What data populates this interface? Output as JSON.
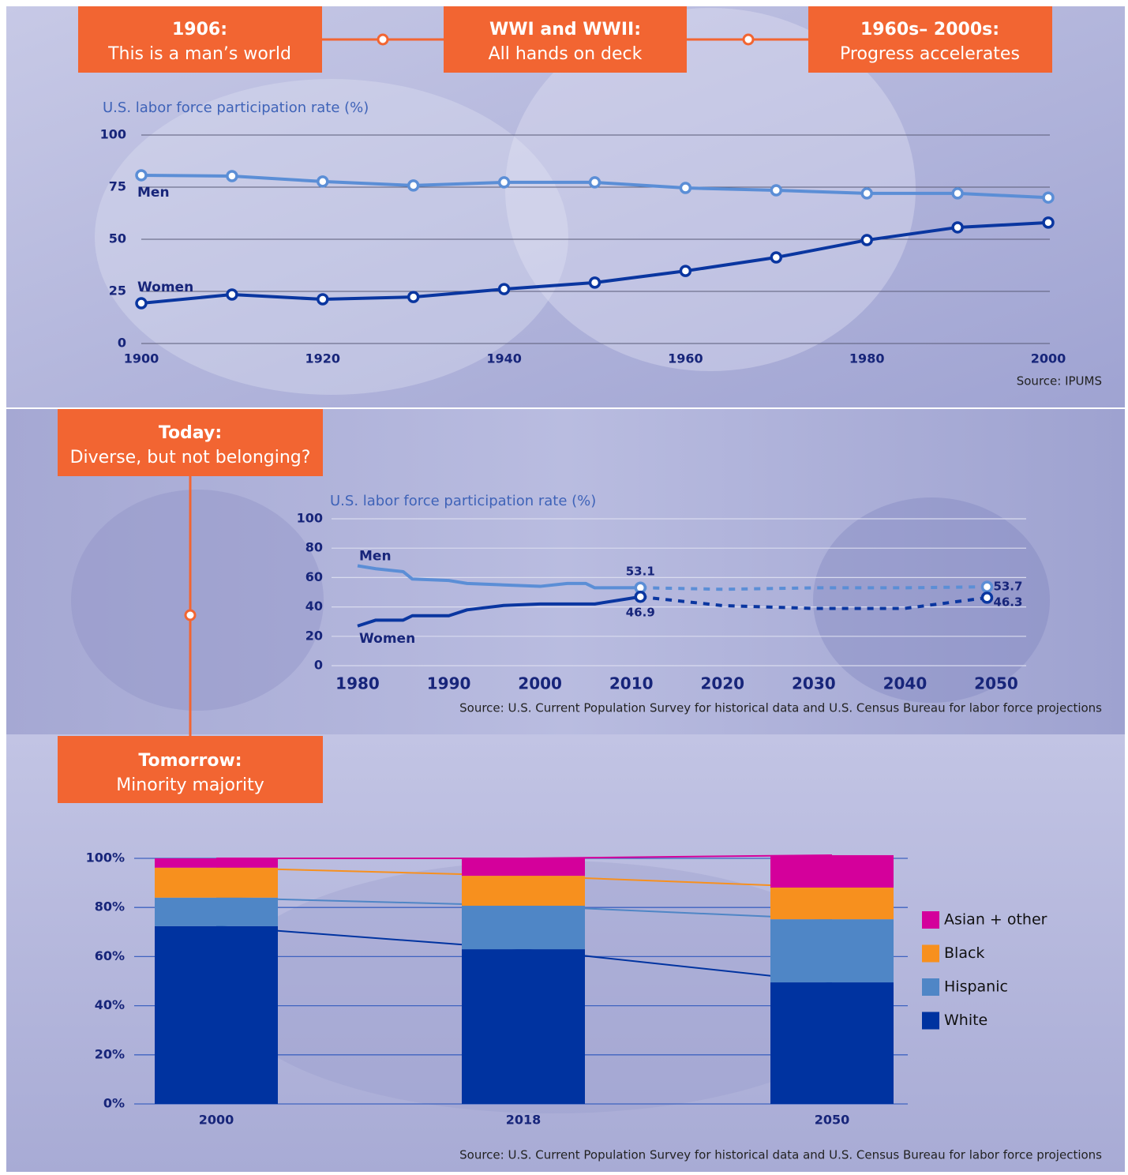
{
  "timeline": [
    {
      "title": "1906:",
      "subtitle": "This is a man’s world"
    },
    {
      "title": "WWI and WWII:",
      "subtitle": "All hands on deck"
    },
    {
      "title": "1960s– 2000s:",
      "subtitle": "Progress accelerates"
    },
    {
      "title": "Today:",
      "subtitle": "Diverse, but not belonging?"
    },
    {
      "title": "Tomorrow:",
      "subtitle": "Minority majority"
    }
  ],
  "chart_data": [
    {
      "type": "line",
      "title": "U.S. labor force participation rate (%)",
      "x": [
        1900,
        1910,
        1920,
        1930,
        1940,
        1950,
        1960,
        1970,
        1980,
        1990,
        2000
      ],
      "xlim": [
        1900,
        2000
      ],
      "xticks": [
        1900,
        1920,
        1940,
        1960,
        1980,
        2000
      ],
      "ylim": [
        0,
        100
      ],
      "yticks": [
        0,
        25,
        50,
        75,
        100
      ],
      "grid": true,
      "markers": true,
      "series": [
        {
          "name": "Men",
          "color": "#5b8ed6",
          "values": [
            80.7,
            80.3,
            77.7,
            75.8,
            77.3,
            77.3,
            74.6,
            73.5,
            72,
            72,
            70
          ]
        },
        {
          "name": "Women",
          "color": "#0a36a0",
          "values": [
            19.3,
            23.5,
            21.2,
            22.3,
            26.1,
            29.2,
            34.8,
            41.3,
            49.6,
            55.7,
            58
          ]
        }
      ],
      "source": "Source: IPUMS"
    },
    {
      "type": "line",
      "title": "U.S. labor force participation rate (%)",
      "x": [
        1980,
        1982,
        1985,
        1986,
        1990,
        1992,
        1996,
        2000,
        2003,
        2005,
        2006,
        2011,
        2020,
        2030,
        2040,
        2049
      ],
      "xlim": [
        1980,
        2050
      ],
      "xticks": [
        1980,
        1990,
        2000,
        2010,
        2020,
        2030,
        2040,
        2050
      ],
      "ylim": [
        0,
        100
      ],
      "yticks": [
        0,
        20,
        40,
        60,
        80,
        100
      ],
      "grid": true,
      "projection_start": 2011,
      "series": [
        {
          "name": "Men",
          "color": "#5b8ed6",
          "values": [
            68,
            66,
            64,
            59,
            58,
            56,
            55,
            54,
            56,
            56,
            53,
            53.1,
            52,
            53,
            53,
            53.7
          ]
        },
        {
          "name": "Women",
          "color": "#0a36a0",
          "values": [
            27,
            31,
            31,
            34,
            34,
            38,
            41,
            42,
            42,
            42,
            42,
            46.9,
            40.9,
            39,
            39,
            46.3
          ]
        }
      ],
      "source": "Source: U.S. Current Population Survey for historical data and U.S. Census Bureau for labor force projections"
    },
    {
      "type": "stacked_bar",
      "categories": [
        "2000",
        "2018",
        "2050"
      ],
      "ylim": [
        0,
        100
      ],
      "yticks": [
        {
          "value": 0,
          "label": "0%"
        },
        {
          "value": 20,
          "label": "20%"
        },
        {
          "value": 40,
          "label": "40%"
        },
        {
          "value": 60,
          "label": "60%"
        },
        {
          "value": 80,
          "label": "80%"
        },
        {
          "value": 100,
          "label": "100%"
        }
      ],
      "grid": true,
      "legend": "right",
      "series": [
        {
          "name": "White",
          "color": "#0033a0",
          "values": [
            72.4,
            63,
            49.5
          ]
        },
        {
          "name": "Hispanic",
          "color": "#4f86c6",
          "values": [
            11.6,
            17.7,
            25.7
          ]
        },
        {
          "name": "Black",
          "color": "#f7901e",
          "values": [
            12.2,
            12.2,
            12.9
          ]
        },
        {
          "name": "Asian + other",
          "color": "#d4009b",
          "values": [
            3.8,
            7.1,
            13.2
          ]
        }
      ],
      "source": "Source: U.S. Current Population Survey for historical data and U.S. Census Bureau for labor force projections"
    }
  ]
}
